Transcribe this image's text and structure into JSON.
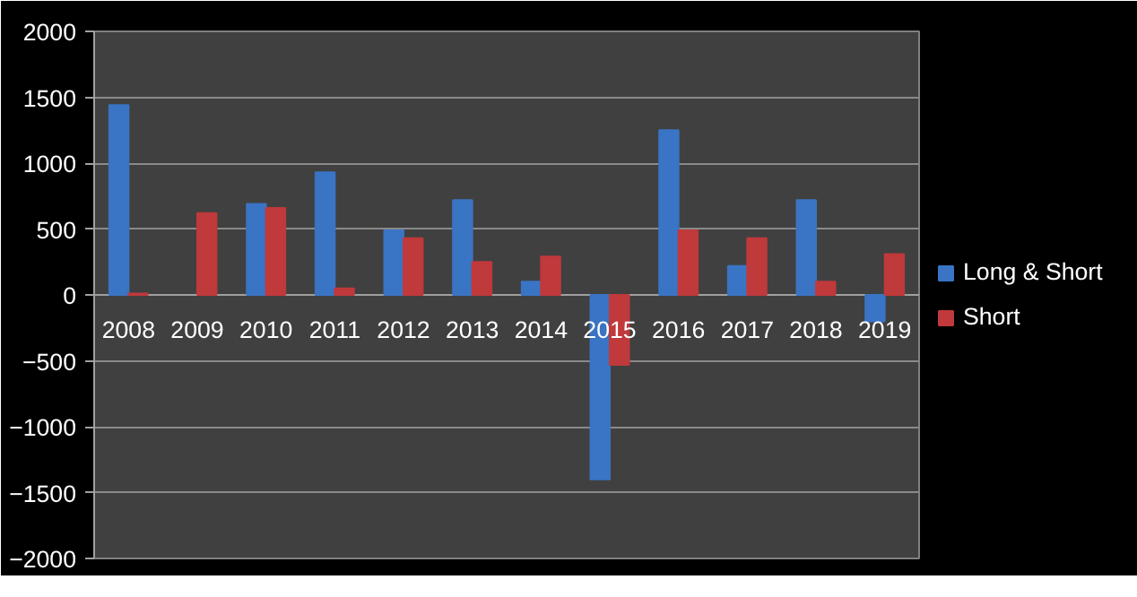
{
  "chart_data": {
    "type": "bar",
    "categories": [
      "2008",
      "2009",
      "2010",
      "2011",
      "2012",
      "2013",
      "2014",
      "2015",
      "2016",
      "2017",
      "2018",
      "2019"
    ],
    "series": [
      {
        "name": "Long & Short",
        "color": "#3a74c4",
        "values": [
          1440,
          null,
          690,
          930,
          490,
          720,
          100,
          -1400,
          1250,
          220,
          720,
          -200
        ]
      },
      {
        "name": "Short",
        "color": "#c0393b",
        "values": [
          10,
          620,
          660,
          50,
          430,
          250,
          290,
          -530,
          490,
          430,
          100,
          310
        ]
      }
    ],
    "ylim": [
      -2000,
      2000
    ],
    "yticks": [
      -2000,
      -1500,
      -1000,
      -500,
      0,
      500,
      1000,
      1500,
      2000
    ],
    "grid": "y",
    "legend": "right"
  }
}
